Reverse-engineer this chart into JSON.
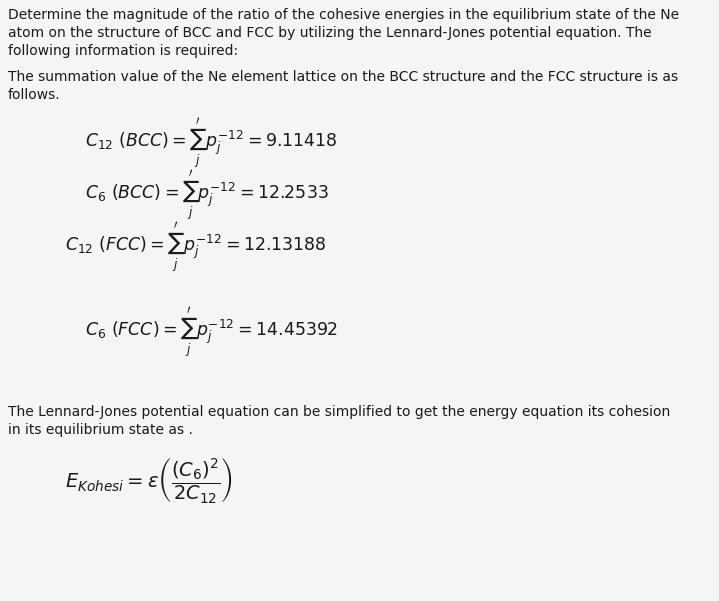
{
  "bg_color": "#f5f5f5",
  "text_color": "#1a1a1a",
  "fontsize_body": 10.0,
  "fontsize_eq": 12.5,
  "fontsize_eq_final": 14,
  "line1": "Determine the magnitude of the ratio of the cohesive energies in the equilibrium state of the Ne",
  "line2": "atom on the structure of BCC and FCC by utilizing the Lennard-Jones potential equation. The",
  "line3": "following information is required:",
  "line4": "The summation value of the Ne element lattice on the BCC structure and the FCC structure is as",
  "line5": "follows.",
  "eq1": "$C_{12}\\ (BCC) = \\sum_{j}^{\\prime} p_j^{-12} = 9.11418$",
  "eq2": "$C_{6}\\ (BCC) = \\sum_{j}^{\\prime} p_j^{-12} = 12.2533$",
  "eq3": "$C_{12}\\ (FCC) = \\sum_{j}^{\\prime} p_j^{-12} = 12.13188$",
  "eq4": "$C_{6}\\ (FCC) = \\sum_{j}^{\\prime} p_j^{-12} = 14.45392$",
  "line6": "The Lennard-Jones potential equation can be simplified to get the energy equation its cohesion",
  "line7": "in its equilibrium state as .",
  "eq5": "$E_{Kohesi} = \\varepsilon \\left(\\dfrac{(C_6)^2}{2C_{12}}\\right)$"
}
